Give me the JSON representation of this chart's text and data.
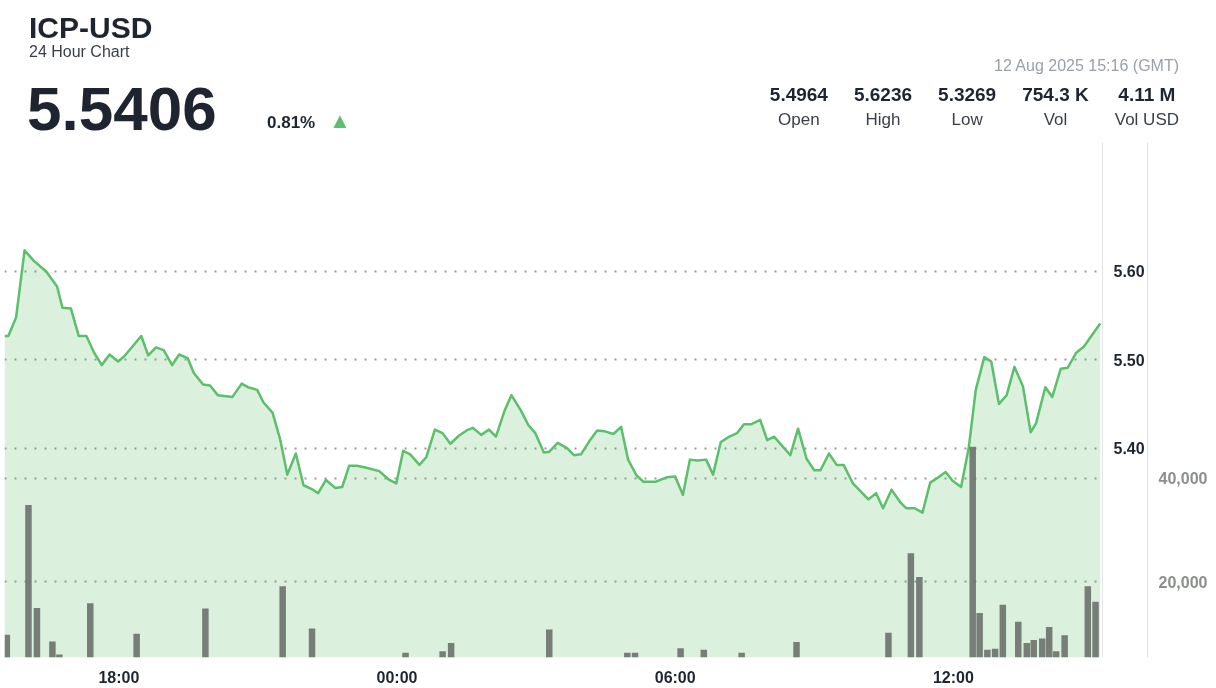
{
  "chart_data": {
    "type": "area",
    "title": "ICP-USD",
    "subtitle": "24 Hour Chart",
    "annotations": [
      "5.5406",
      "0.81%",
      "▲",
      "12 Aug 2025 15:16 (GMT)",
      "5.4964",
      "Open",
      "5.6236",
      "High",
      "5.3269",
      "Low",
      "754.3 K",
      "Vol",
      "4.11 M",
      "Vol USD"
    ],
    "xlim": [
      "2025-08-11T15:32",
      "2025-08-12T15:13"
    ],
    "xticks": [
      {
        "value": "2025-08-11T18:00",
        "label": "18:00"
      },
      {
        "value": "2025-08-12T00:00",
        "label": "00:00"
      },
      {
        "value": "2025-08-12T06:00",
        "label": "06:00"
      },
      {
        "value": "2025-08-12T12:00",
        "label": "12:00"
      }
    ],
    "ylim": [
      5.163,
      5.746
    ],
    "yticks": [
      {
        "value": 5.4,
        "label": "5.40"
      },
      {
        "value": 5.5,
        "label": "5.50"
      },
      {
        "value": 5.6,
        "label": "5.60"
      }
    ],
    "y2lim": [
      5300,
      105000
    ],
    "y2ticks": [
      {
        "value": 20000,
        "label": "20,000"
      },
      {
        "value": 40000,
        "label": "40,000"
      }
    ],
    "grid": "y",
    "series": [
      {
        "color": "#5cbf6b",
        "x": [
          "2025-08-11T15:32",
          "2025-08-11T15:37",
          "2025-08-11T15:47",
          "2025-08-11T15:58",
          "2025-08-11T16:10",
          "2025-08-11T16:26",
          "2025-08-11T16:40",
          "2025-08-11T16:47",
          "2025-08-11T16:58",
          "2025-08-11T17:08",
          "2025-08-11T17:18",
          "2025-08-11T17:28",
          "2025-08-11T17:38",
          "2025-08-11T17:48",
          "2025-08-11T17:59",
          "2025-08-11T18:07",
          "2025-08-11T18:29",
          "2025-08-11T18:38",
          "2025-08-11T18:48",
          "2025-08-11T18:58",
          "2025-08-11T19:09",
          "2025-08-11T19:18",
          "2025-08-11T19:29",
          "2025-08-11T19:37",
          "2025-08-11T19:49",
          "2025-08-11T19:58",
          "2025-08-11T20:08",
          "2025-08-11T20:27",
          "2025-08-11T20:39",
          "2025-08-11T20:47",
          "2025-08-11T20:59",
          "2025-08-11T21:07",
          "2025-08-11T21:19",
          "2025-08-11T21:29",
          "2025-08-11T21:38",
          "2025-08-11T21:49",
          "2025-08-11T21:59",
          "2025-08-11T22:09",
          "2025-08-11T22:18",
          "2025-08-11T22:28",
          "2025-08-11T22:40",
          "2025-08-11T22:49",
          "2025-08-11T22:58",
          "2025-08-11T23:08",
          "2025-08-11T23:19",
          "2025-08-11T23:37",
          "2025-08-11T23:50",
          "2025-08-11T23:59",
          "2025-08-12T00:08",
          "2025-08-12T00:17",
          "2025-08-12T00:29",
          "2025-08-12T00:38",
          "2025-08-12T00:49",
          "2025-08-12T00:59",
          "2025-08-12T01:09",
          "2025-08-12T01:20",
          "2025-08-12T01:30",
          "2025-08-12T01:38",
          "2025-08-12T01:49",
          "2025-08-12T01:59",
          "2025-08-12T02:08",
          "2025-08-12T02:19",
          "2025-08-12T02:28",
          "2025-08-12T02:40",
          "2025-08-12T02:50",
          "2025-08-12T02:59",
          "2025-08-12T03:10",
          "2025-08-12T03:17",
          "2025-08-12T03:28",
          "2025-08-12T03:40",
          "2025-08-12T03:49",
          "2025-08-12T03:58",
          "2025-08-12T04:09",
          "2025-08-12T04:19",
          "2025-08-12T04:29",
          "2025-08-12T04:40",
          "2025-08-12T04:50",
          "2025-08-12T04:59",
          "2025-08-12T05:10",
          "2025-08-12T05:19",
          "2025-08-12T05:35",
          "2025-08-12T05:49",
          "2025-08-12T06:00",
          "2025-08-12T06:10",
          "2025-08-12T06:19",
          "2025-08-12T06:29",
          "2025-08-12T06:40",
          "2025-08-12T06:49",
          "2025-08-12T06:59",
          "2025-08-12T07:10",
          "2025-08-12T07:20",
          "2025-08-12T07:29",
          "2025-08-12T07:38",
          "2025-08-12T07:50",
          "2025-08-12T07:59",
          "2025-08-12T08:08",
          "2025-08-12T08:29",
          "2025-08-12T08:39",
          "2025-08-12T08:50",
          "2025-08-12T09:00",
          "2025-08-12T09:08",
          "2025-08-12T09:19",
          "2025-08-12T09:29",
          "2025-08-12T09:38",
          "2025-08-12T09:50",
          "2025-08-12T10:10",
          "2025-08-12T10:20",
          "2025-08-12T10:29",
          "2025-08-12T10:40",
          "2025-08-12T10:51",
          "2025-08-12T10:59",
          "2025-08-12T11:10",
          "2025-08-12T11:20",
          "2025-08-12T11:30",
          "2025-08-12T11:39",
          "2025-08-12T11:50",
          "2025-08-12T11:59",
          "2025-08-12T12:10",
          "2025-08-12T12:20",
          "2025-08-12T12:29",
          "2025-08-12T12:40",
          "2025-08-12T12:49",
          "2025-08-12T12:59",
          "2025-08-12T13:09",
          "2025-08-12T13:19",
          "2025-08-12T13:30",
          "2025-08-12T13:40",
          "2025-08-12T13:47",
          "2025-08-12T13:59",
          "2025-08-12T14:08",
          "2025-08-12T14:19",
          "2025-08-12T14:28",
          "2025-08-12T14:39",
          "2025-08-12T14:49",
          "2025-08-12T15:10"
        ],
        "values": [
          5.527,
          5.527,
          5.548,
          5.624,
          5.612,
          5.6,
          5.583,
          5.559,
          5.558,
          5.527,
          5.527,
          5.508,
          5.494,
          5.506,
          5.498,
          5.504,
          5.527,
          5.505,
          5.514,
          5.511,
          5.494,
          5.506,
          5.502,
          5.485,
          5.472,
          5.471,
          5.46,
          5.458,
          5.473,
          5.469,
          5.466,
          5.452,
          5.44,
          5.409,
          5.37,
          5.394,
          5.358,
          5.354,
          5.349,
          5.364,
          5.355,
          5.356,
          5.38,
          5.38,
          5.378,
          5.374,
          5.364,
          5.36,
          5.397,
          5.393,
          5.381,
          5.39,
          5.421,
          5.417,
          5.405,
          5.414,
          5.42,
          5.423,
          5.415,
          5.421,
          5.413,
          5.442,
          5.46,
          5.443,
          5.426,
          5.417,
          5.395,
          5.396,
          5.406,
          5.4,
          5.392,
          5.393,
          5.408,
          5.42,
          5.419,
          5.416,
          5.424,
          5.387,
          5.369,
          5.362,
          5.362,
          5.367,
          5.368,
          5.347,
          5.387,
          5.386,
          5.387,
          5.37,
          5.407,
          5.413,
          5.417,
          5.427,
          5.427,
          5.432,
          5.409,
          5.413,
          5.392,
          5.422,
          5.388,
          5.375,
          5.375,
          5.394,
          5.381,
          5.381,
          5.36,
          5.342,
          5.349,
          5.332,
          5.353,
          5.339,
          5.332,
          5.332,
          5.327,
          5.361,
          5.366,
          5.373,
          5.363,
          5.356,
          5.401,
          5.466,
          5.503,
          5.498,
          5.45,
          5.46,
          5.492,
          5.47,
          5.418,
          5.428,
          5.469,
          5.458,
          5.49,
          5.491,
          5.508,
          5.515,
          5.541
        ]
      },
      {
        "type": "bar",
        "axis": "y2",
        "color": "#6b706b",
        "x": [
          "2025-08-11T15:35",
          "2025-08-11T16:03",
          "2025-08-11T16:14",
          "2025-08-11T16:34",
          "2025-08-11T16:43",
          "2025-08-11T17:23",
          "2025-08-11T18:23",
          "2025-08-11T19:52",
          "2025-08-11T21:32",
          "2025-08-11T22:10",
          "2025-08-12T00:11",
          "2025-08-12T00:59",
          "2025-08-12T01:10",
          "2025-08-12T03:17",
          "2025-08-12T04:58",
          "2025-08-12T05:08",
          "2025-08-12T06:07",
          "2025-08-12T06:37",
          "2025-08-12T07:26",
          "2025-08-12T08:37",
          "2025-08-12T10:36",
          "2025-08-12T11:05",
          "2025-08-12T11:16",
          "2025-08-12T12:25",
          "2025-08-12T12:34",
          "2025-08-12T12:44",
          "2025-08-12T12:54",
          "2025-08-12T13:04",
          "2025-08-12T13:24",
          "2025-08-12T13:35",
          "2025-08-12T13:44",
          "2025-08-12T13:55",
          "2025-08-12T14:04",
          "2025-08-12T14:13",
          "2025-08-12T14:24",
          "2025-08-12T14:54",
          "2025-08-12T15:04"
        ],
        "values": [
          9700,
          34800,
          14900,
          8400,
          5900,
          15800,
          9900,
          14800,
          19100,
          10900,
          6200,
          6500,
          8100,
          10700,
          6200,
          6200,
          7100,
          6800,
          6200,
          8300,
          10100,
          25500,
          20900,
          46100,
          13900,
          6800,
          7000,
          15500,
          12200,
          8100,
          8700,
          9000,
          11200,
          6500,
          9600,
          19100,
          16100
        ]
      }
    ]
  }
}
